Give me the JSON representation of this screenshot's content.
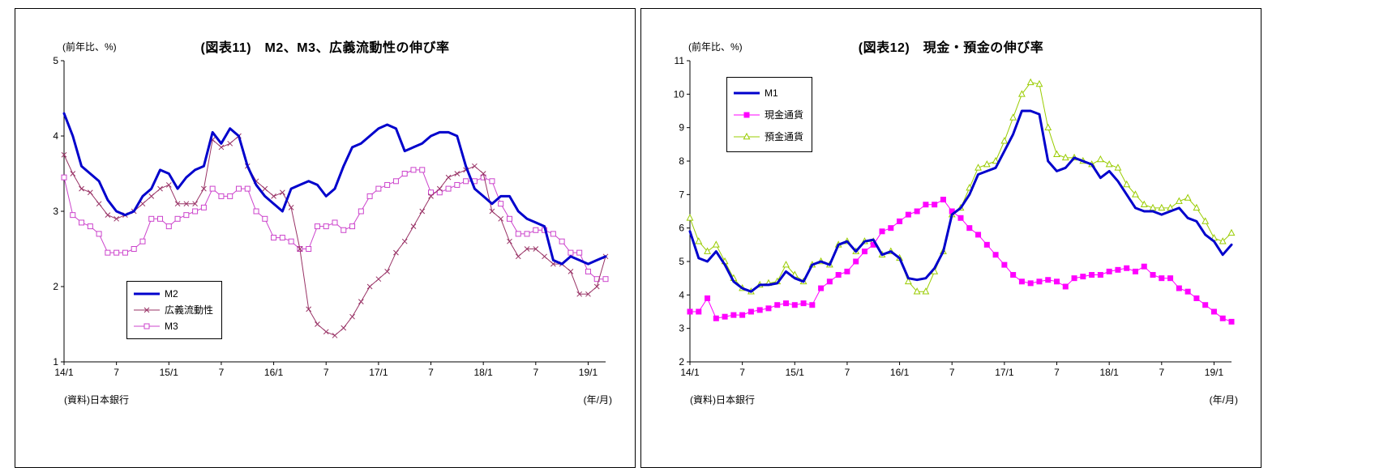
{
  "chart_data": [
    {
      "type": "line",
      "title": "(図表11)　M2、M3、広義流動性の伸び率",
      "y_unit": "(前年比、%)",
      "x_unit": "(年/月)",
      "source": "(資料)日本銀行",
      "ylim": [
        1,
        5
      ],
      "yticks": [
        1,
        2,
        3,
        4,
        5
      ],
      "x_tick_indices": [
        0,
        6,
        12,
        18,
        24,
        30,
        36,
        42,
        48,
        54,
        60
      ],
      "x_tick_labels": [
        "14/1",
        "7",
        "15/1",
        "7",
        "16/1",
        "7",
        "17/1",
        "7",
        "18/1",
        "7",
        "19/1"
      ],
      "grid": false,
      "legend_position": "lower-left-inside",
      "series": [
        {
          "name": "M2",
          "key": "m2",
          "color": "#0000CC",
          "line_width": 3,
          "marker": "none",
          "values": [
            4.3,
            4.0,
            3.6,
            3.5,
            3.4,
            3.15,
            3.0,
            2.95,
            3.0,
            3.2,
            3.3,
            3.55,
            3.5,
            3.3,
            3.45,
            3.55,
            3.6,
            4.05,
            3.9,
            4.1,
            4.0,
            3.6,
            3.35,
            3.2,
            3.1,
            3.0,
            3.3,
            3.35,
            3.4,
            3.35,
            3.2,
            3.3,
            3.6,
            3.85,
            3.9,
            4.0,
            4.1,
            4.15,
            4.1,
            3.8,
            3.85,
            3.9,
            4.0,
            4.05,
            4.05,
            4.0,
            3.6,
            3.3,
            3.2,
            3.1,
            3.2,
            3.2,
            3.0,
            2.9,
            2.85,
            2.8,
            2.35,
            2.3,
            2.4,
            2.35,
            2.3,
            2.35,
            2.4
          ]
        },
        {
          "name": "広義流動性",
          "key": "broad-liquidity",
          "color": "#993366",
          "line_width": 1,
          "marker": "x",
          "values": [
            3.75,
            3.5,
            3.3,
            3.25,
            3.1,
            2.95,
            2.9,
            2.95,
            3.0,
            3.1,
            3.2,
            3.3,
            3.35,
            3.1,
            3.1,
            3.1,
            3.3,
            3.95,
            3.85,
            3.9,
            4.0,
            3.6,
            3.4,
            3.3,
            3.2,
            3.25,
            3.05,
            2.5,
            1.7,
            1.5,
            1.4,
            1.35,
            1.45,
            1.6,
            1.8,
            2.0,
            2.1,
            2.2,
            2.45,
            2.6,
            2.8,
            3.0,
            3.2,
            3.3,
            3.45,
            3.5,
            3.55,
            3.6,
            3.5,
            3.0,
            2.9,
            2.6,
            2.4,
            2.5,
            2.5,
            2.4,
            2.3,
            2.3,
            2.2,
            1.9,
            1.9,
            2.0,
            2.4
          ]
        },
        {
          "name": "M3",
          "key": "m3",
          "color": "#CC44CC",
          "line_width": 1,
          "marker": "square-open",
          "values": [
            3.45,
            2.95,
            2.85,
            2.8,
            2.7,
            2.45,
            2.45,
            2.45,
            2.5,
            2.6,
            2.9,
            2.9,
            2.8,
            2.9,
            2.95,
            3.0,
            3.05,
            3.3,
            3.2,
            3.2,
            3.3,
            3.3,
            3.0,
            2.9,
            2.65,
            2.65,
            2.6,
            2.5,
            2.5,
            2.8,
            2.8,
            2.85,
            2.75,
            2.8,
            3.0,
            3.2,
            3.3,
            3.35,
            3.4,
            3.5,
            3.55,
            3.55,
            3.25,
            3.25,
            3.3,
            3.35,
            3.4,
            3.4,
            3.45,
            3.4,
            3.1,
            2.9,
            2.7,
            2.7,
            2.75,
            2.75,
            2.7,
            2.6,
            2.45,
            2.45,
            2.2,
            2.1,
            2.1
          ]
        }
      ]
    },
    {
      "type": "line",
      "title": "(図表12)　現金・預金の伸び率",
      "y_unit": "(前年比、%)",
      "x_unit": "(年/月)",
      "source": "(資料)日本銀行",
      "ylim": [
        2,
        11
      ],
      "yticks": [
        2,
        3,
        4,
        5,
        6,
        7,
        8,
        9,
        10,
        11
      ],
      "x_tick_indices": [
        0,
        6,
        12,
        18,
        24,
        30,
        36,
        42,
        48,
        54,
        60
      ],
      "x_tick_labels": [
        "14/1",
        "7",
        "15/1",
        "7",
        "16/1",
        "7",
        "17/1",
        "7",
        "18/1",
        "7",
        "19/1"
      ],
      "grid": false,
      "legend_position": "upper-left-inside",
      "series": [
        {
          "name": "M1",
          "key": "m1",
          "color": "#0000CC",
          "line_width": 3,
          "marker": "none",
          "values": [
            5.9,
            5.1,
            5.0,
            5.3,
            4.9,
            4.4,
            4.2,
            4.1,
            4.3,
            4.3,
            4.35,
            4.7,
            4.5,
            4.4,
            4.9,
            5.0,
            4.9,
            5.5,
            5.6,
            5.3,
            5.6,
            5.65,
            5.2,
            5.3,
            5.1,
            4.5,
            4.45,
            4.5,
            4.8,
            5.3,
            6.4,
            6.6,
            7.0,
            7.6,
            7.7,
            7.8,
            8.3,
            8.8,
            9.5,
            9.5,
            9.4,
            8.0,
            7.7,
            7.8,
            8.1,
            8.0,
            7.9,
            7.5,
            7.7,
            7.4,
            7.0,
            6.6,
            6.5,
            6.5,
            6.4,
            6.5,
            6.6,
            6.3,
            6.2,
            5.8,
            5.6,
            5.2,
            5.5
          ]
        },
        {
          "name": "現金通貨",
          "key": "cash-currency",
          "color": "#FF00FF",
          "line_width": 1,
          "marker": "square-filled",
          "values": [
            3.5,
            3.5,
            3.9,
            3.3,
            3.35,
            3.4,
            3.4,
            3.5,
            3.55,
            3.6,
            3.7,
            3.75,
            3.7,
            3.75,
            3.7,
            4.2,
            4.4,
            4.6,
            4.7,
            5.0,
            5.3,
            5.5,
            5.9,
            6.0,
            6.2,
            6.4,
            6.5,
            6.7,
            6.7,
            6.85,
            6.5,
            6.3,
            6.0,
            5.8,
            5.5,
            5.2,
            4.9,
            4.6,
            4.4,
            4.35,
            4.4,
            4.45,
            4.4,
            4.25,
            4.5,
            4.55,
            4.6,
            4.6,
            4.7,
            4.75,
            4.8,
            4.7,
            4.85,
            4.6,
            4.5,
            4.5,
            4.2,
            4.1,
            3.9,
            3.7,
            3.5,
            3.3,
            3.2
          ]
        },
        {
          "name": "預金通貨",
          "key": "deposit-currency",
          "color": "#99CC00",
          "line_width": 1,
          "marker": "triangle-open",
          "values": [
            6.3,
            5.6,
            5.3,
            5.5,
            5.0,
            4.5,
            4.2,
            4.1,
            4.3,
            4.35,
            4.4,
            4.9,
            4.6,
            4.4,
            4.9,
            5.0,
            4.9,
            5.5,
            5.6,
            5.3,
            5.6,
            5.6,
            5.2,
            5.3,
            5.1,
            4.4,
            4.1,
            4.1,
            4.7,
            5.3,
            6.4,
            6.6,
            7.2,
            7.8,
            7.9,
            8.0,
            8.6,
            9.3,
            10.0,
            10.35,
            10.3,
            9.0,
            8.2,
            8.1,
            8.1,
            8.0,
            7.9,
            8.05,
            7.9,
            7.8,
            7.3,
            7.0,
            6.7,
            6.6,
            6.6,
            6.6,
            6.8,
            6.9,
            6.6,
            6.2,
            5.7,
            5.6,
            5.85
          ]
        }
      ]
    }
  ]
}
